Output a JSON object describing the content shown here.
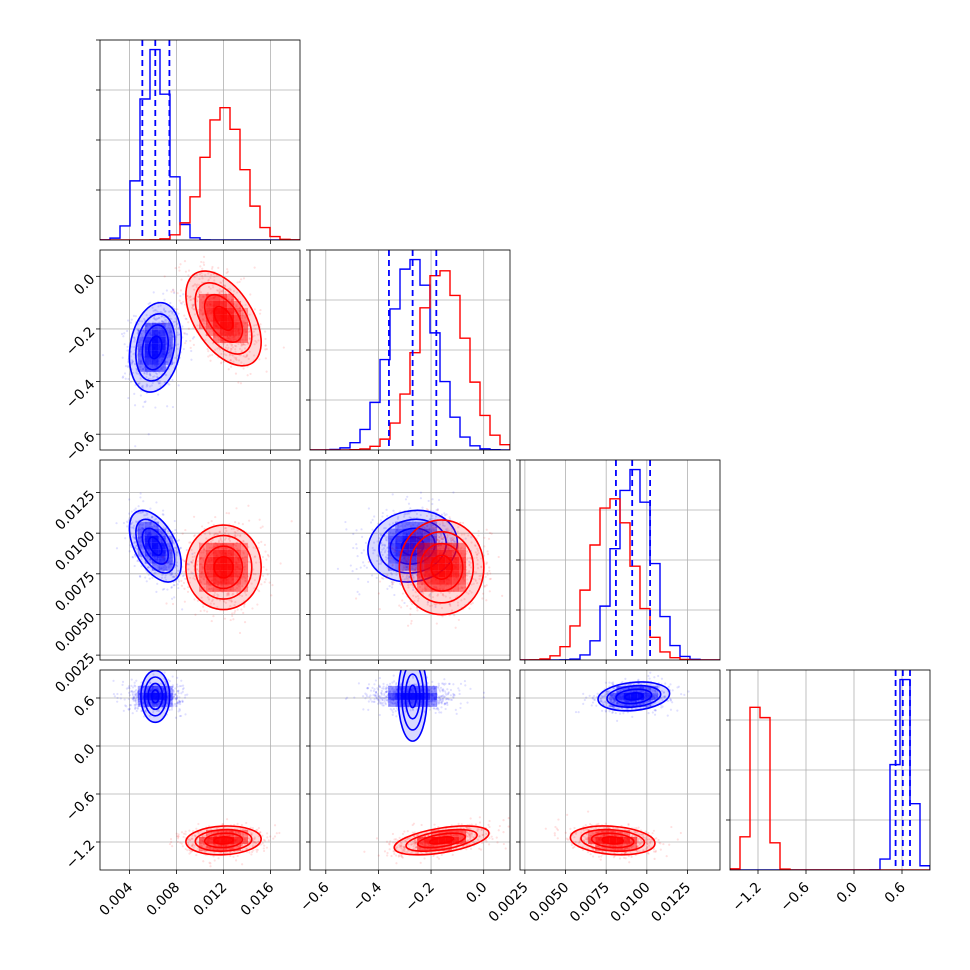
{
  "chart_data": {
    "type": "corner",
    "colors": {
      "blue": "#0000ff",
      "red": "#ff0000"
    },
    "grid": true,
    "parameters": [
      {
        "range": [
          0.0015,
          0.0185
        ],
        "ticks": [
          0.004,
          0.008,
          0.012,
          0.016
        ],
        "tick_labels": [
          "0.004",
          "0.008",
          "0.012",
          "0.016"
        ]
      },
      {
        "range": [
          -0.66,
          0.1
        ],
        "ticks": [
          -0.6,
          -0.4,
          -0.2,
          0.0
        ],
        "tick_labels": [
          "−0.6",
          "−0.4",
          "−0.2",
          "0.0"
        ]
      },
      {
        "range": [
          0.0022,
          0.0145
        ],
        "ticks": [
          0.0025,
          0.005,
          0.0075,
          0.01,
          0.0125
        ],
        "tick_labels": [
          "0.0025",
          "0.0050",
          "0.0075",
          "0.0100",
          "0.0125"
        ],
        "tick_labels_y": [
          "0.0025",
          "0.0050",
          "0.0075",
          "0.0100",
          "0.0125"
        ]
      },
      {
        "range": [
          -1.55,
          0.95
        ],
        "ticks": [
          -1.2,
          -0.6,
          0.0,
          0.6
        ],
        "tick_labels": [
          "−1.2",
          "−0.6",
          "0.0",
          "0.6"
        ]
      }
    ],
    "series": [
      {
        "color": "blue",
        "mean": [
          0.0062,
          -0.27,
          0.0092,
          0.62
        ],
        "sigma": [
          0.0011,
          0.085,
          0.0011,
          0.09
        ],
        "corr": [
          [
            1,
            0.2,
            -0.5,
            0
          ],
          [
            0.2,
            1,
            0.1,
            0
          ],
          [
            -0.5,
            0.1,
            1,
            0.2
          ],
          [
            0,
            0,
            0.2,
            1
          ]
        ],
        "quantiles": [
          [
            0.0051,
            0.0062,
            0.0074
          ],
          [
            -0.36,
            -0.27,
            -0.18
          ],
          [
            0.0081,
            0.0091,
            0.0102
          ],
          [
            0.52,
            0.61,
            0.7
          ]
        ]
      },
      {
        "color": "red",
        "mean": [
          0.012,
          -0.16,
          0.0079,
          -1.18
        ],
        "sigma": [
          0.0016,
          0.09,
          0.0013,
          0.09
        ],
        "corr": [
          [
            1,
            -0.5,
            0,
            0.1
          ],
          [
            -0.5,
            1,
            0,
            0.5
          ],
          [
            0,
            0,
            1,
            -0.2
          ],
          [
            0.1,
            0.5,
            -0.2,
            1
          ]
        ],
        "quantiles": []
      }
    ]
  }
}
